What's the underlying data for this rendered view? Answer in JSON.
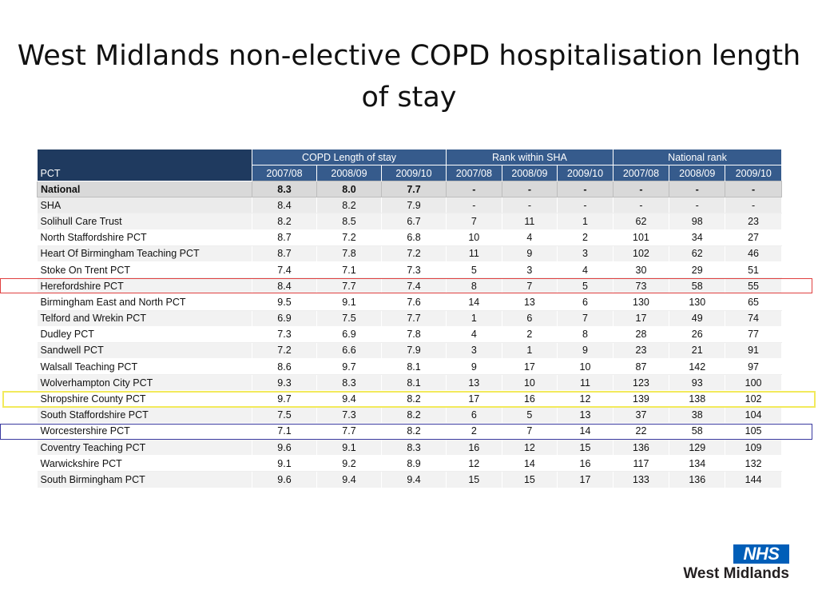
{
  "title": "West Midlands non-elective COPD hospitalisation length of stay",
  "table": {
    "group_headers": [
      "COPD Length of stay",
      "Rank within SHA",
      "National rank"
    ],
    "pct_header": "PCT",
    "year_headers": [
      "2007/08",
      "2008/09",
      "2009/10",
      "2007/08",
      "2008/09",
      "2009/10",
      "2007/08",
      "2008/09",
      "2009/10"
    ],
    "rows": [
      [
        "National",
        "8.3",
        "8.0",
        "7.7",
        "-",
        "-",
        "-",
        "-",
        "-",
        "-"
      ],
      [
        "SHA",
        "8.4",
        "8.2",
        "7.9",
        "-",
        "-",
        "-",
        "-",
        "-",
        "-"
      ],
      [
        "Solihull Care Trust",
        "8.2",
        "8.5",
        "6.7",
        "7",
        "11",
        "1",
        "62",
        "98",
        "23"
      ],
      [
        "North Staffordshire PCT",
        "8.7",
        "7.2",
        "6.8",
        "10",
        "4",
        "2",
        "101",
        "34",
        "27"
      ],
      [
        "Heart Of Birmingham Teaching PCT",
        "8.7",
        "7.8",
        "7.2",
        "11",
        "9",
        "3",
        "102",
        "62",
        "46"
      ],
      [
        "Stoke On Trent PCT",
        "7.4",
        "7.1",
        "7.3",
        "5",
        "3",
        "4",
        "30",
        "29",
        "51"
      ],
      [
        "Herefordshire PCT",
        "8.4",
        "7.7",
        "7.4",
        "8",
        "7",
        "5",
        "73",
        "58",
        "55"
      ],
      [
        "Birmingham East and North PCT",
        "9.5",
        "9.1",
        "7.6",
        "14",
        "13",
        "6",
        "130",
        "130",
        "65"
      ],
      [
        "Telford and Wrekin PCT",
        "6.9",
        "7.5",
        "7.7",
        "1",
        "6",
        "7",
        "17",
        "49",
        "74"
      ],
      [
        "Dudley PCT",
        "7.3",
        "6.9",
        "7.8",
        "4",
        "2",
        "8",
        "28",
        "26",
        "77"
      ],
      [
        "Sandwell PCT",
        "7.2",
        "6.6",
        "7.9",
        "3",
        "1",
        "9",
        "23",
        "21",
        "91"
      ],
      [
        "Walsall Teaching PCT",
        "8.6",
        "9.7",
        "8.1",
        "9",
        "17",
        "10",
        "87",
        "142",
        "97"
      ],
      [
        "Wolverhampton City PCT",
        "9.3",
        "8.3",
        "8.1",
        "13",
        "10",
        "11",
        "123",
        "93",
        "100"
      ],
      [
        "Shropshire County PCT",
        "9.7",
        "9.4",
        "8.2",
        "17",
        "16",
        "12",
        "139",
        "138",
        "102"
      ],
      [
        "South Staffordshire PCT",
        "7.5",
        "7.3",
        "8.2",
        "6",
        "5",
        "13",
        "37",
        "38",
        "104"
      ],
      [
        "Worcestershire PCT",
        "7.1",
        "7.7",
        "8.2",
        "2",
        "7",
        "14",
        "22",
        "58",
        "105"
      ],
      [
        "Coventry Teaching PCT",
        "9.6",
        "9.1",
        "8.3",
        "16",
        "12",
        "15",
        "136",
        "129",
        "109"
      ],
      [
        "Warwickshire PCT",
        "9.1",
        "9.2",
        "8.9",
        "12",
        "14",
        "16",
        "117",
        "134",
        "132"
      ],
      [
        "South Birmingham PCT",
        "9.6",
        "9.4",
        "9.4",
        "15",
        "15",
        "17",
        "133",
        "136",
        "144"
      ]
    ]
  },
  "highlights": [
    {
      "row": "Herefordshire PCT",
      "color": "#e04040"
    },
    {
      "row": "Shropshire County PCT",
      "color": "#f2ea5c"
    },
    {
      "row": "Worcestershire PCT",
      "color": "#3a3aa0"
    }
  ],
  "logo": {
    "badge": "NHS",
    "region": "West Midlands",
    "color": "#005eb8"
  }
}
